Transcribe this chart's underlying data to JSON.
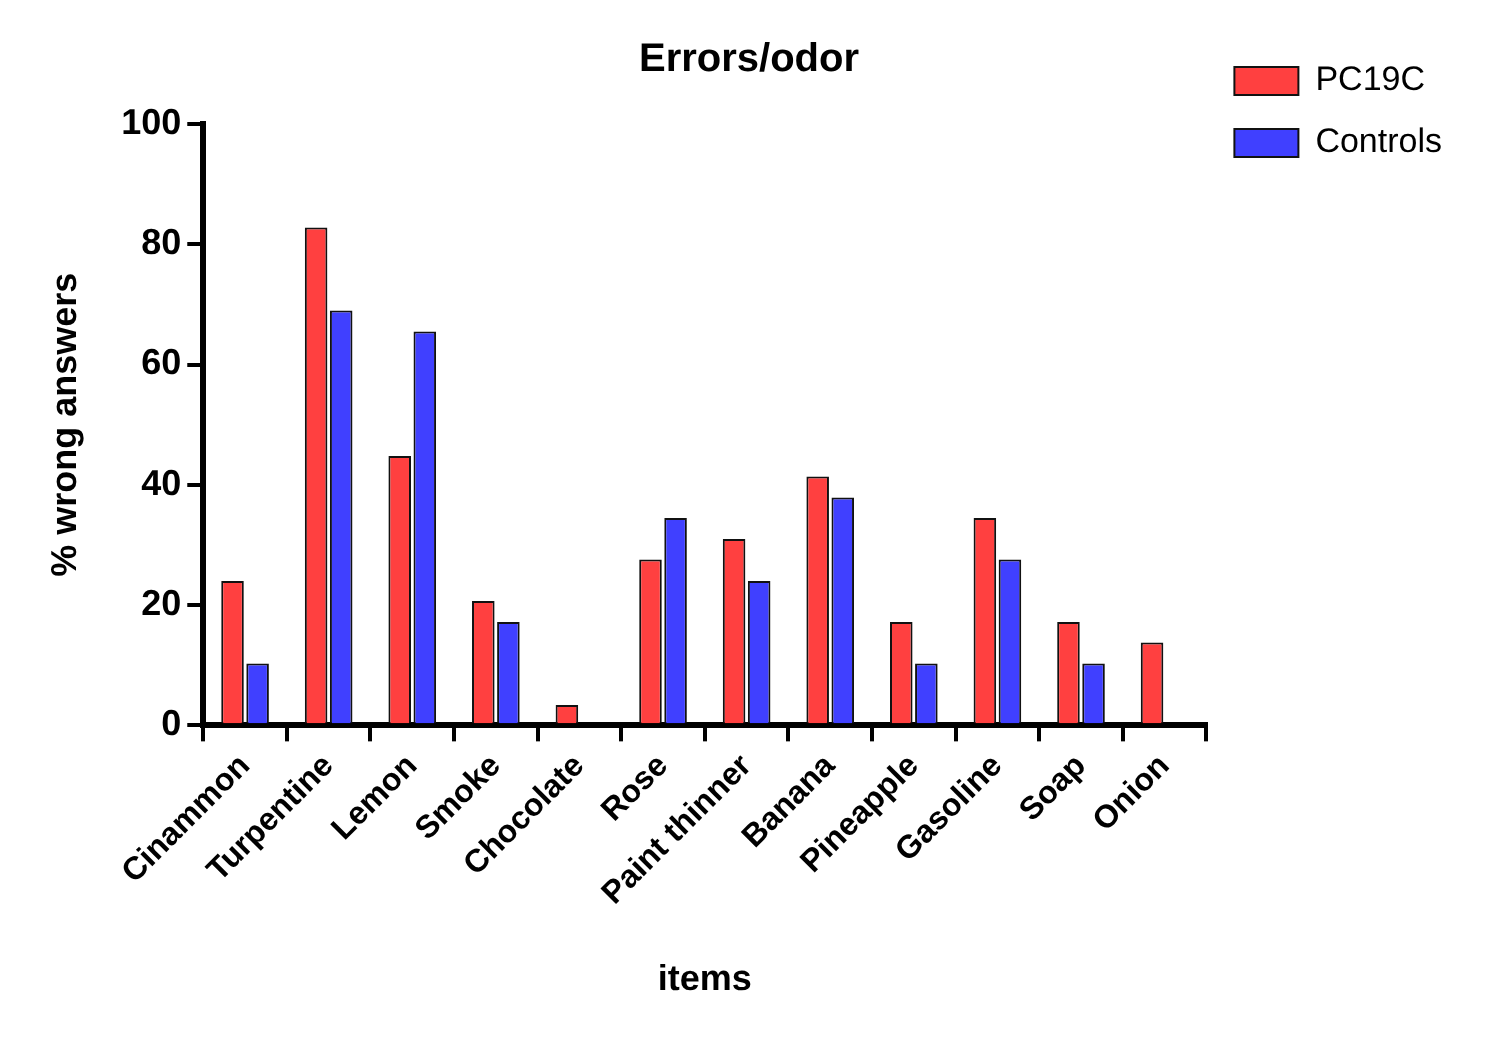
{
  "chart_data": {
    "type": "bar",
    "title": "Errors/odor",
    "xlabel": "items",
    "ylabel": "% wrong answers",
    "categories": [
      "Cinammon",
      "Turpentine",
      "Lemon",
      "Smoke",
      "Chocolate",
      "Rose",
      "Paint thinner",
      "Banana",
      "Pineapple",
      "Gasoline",
      "Soap",
      "Onion"
    ],
    "series": [
      {
        "name": "PC19C",
        "color": "#ff4040",
        "values": [
          24,
          82.8,
          44.8,
          20.7,
          3.4,
          27.6,
          31,
          41.4,
          17.2,
          34.5,
          17.2,
          13.8
        ]
      },
      {
        "name": "Controls",
        "color": "#4040ff",
        "values": [
          10.3,
          69,
          65.5,
          17.2,
          0,
          34.5,
          24,
          37.9,
          10.3,
          27.6,
          10.3,
          0
        ]
      }
    ],
    "ylim": [
      0,
      100
    ],
    "yticks": [
      0,
      20,
      40,
      60,
      80,
      100
    ],
    "grid": false,
    "legend": "top right"
  }
}
